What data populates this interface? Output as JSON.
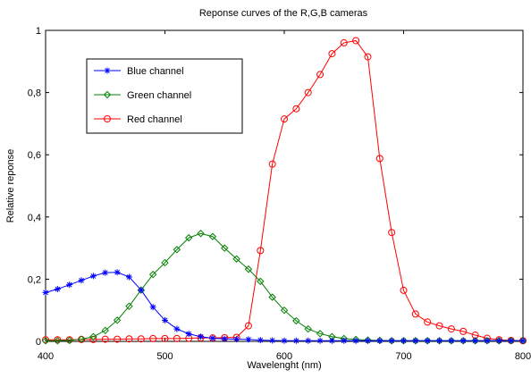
{
  "chart_data": {
    "type": "line",
    "title": "Reponse curves of the R,G,B cameras",
    "xlabel": "Wavelenght (nm)",
    "ylabel": "Relative reponse",
    "xlim": [
      400,
      800
    ],
    "ylim": [
      0,
      1
    ],
    "xticks": [
      400,
      500,
      600,
      700,
      800
    ],
    "xtick_labels": [
      "400",
      "500",
      "600",
      "700",
      "800"
    ],
    "yticks": [
      0,
      0.2,
      0.4,
      0.6,
      0.8,
      1
    ],
    "ytick_labels": [
      "0",
      "0,2",
      "0,4",
      "0,6",
      "0,8",
      "1"
    ],
    "grid": false,
    "legend_position": "top-left",
    "x": [
      400,
      410,
      420,
      430,
      440,
      450,
      460,
      470,
      480,
      490,
      500,
      510,
      520,
      530,
      540,
      550,
      560,
      570,
      580,
      590,
      600,
      610,
      620,
      630,
      640,
      650,
      660,
      670,
      680,
      690,
      700,
      710,
      720,
      730,
      740,
      750,
      760,
      770,
      780,
      790,
      800
    ],
    "series": [
      {
        "name": "Blue channel",
        "color": "#0000ff",
        "marker": "asterisk",
        "values": [
          0.157,
          0.168,
          0.182,
          0.196,
          0.21,
          0.221,
          0.222,
          0.207,
          0.165,
          0.11,
          0.068,
          0.04,
          0.024,
          0.015,
          0.01,
          0.008,
          0.007,
          0.006,
          0.004,
          0.003,
          0.002,
          0.002,
          0.002,
          0.002,
          0.002,
          0.002,
          0.002,
          0.002,
          0.002,
          0.002,
          0.002,
          0.002,
          0.002,
          0.002,
          0.002,
          0.002,
          0.002,
          0.002,
          0.002,
          0.002,
          0.002
        ]
      },
      {
        "name": "Green channel",
        "color": "#008000",
        "marker": "diamond",
        "values": [
          0.002,
          0.002,
          0.003,
          0.007,
          0.015,
          0.035,
          0.068,
          0.113,
          0.165,
          0.215,
          0.253,
          0.295,
          0.333,
          0.347,
          0.337,
          0.3,
          0.265,
          0.232,
          0.193,
          0.142,
          0.1,
          0.066,
          0.04,
          0.025,
          0.015,
          0.009,
          0.006,
          0.004,
          0.003,
          0.002,
          0.002,
          0.002,
          0.002,
          0.002,
          0.002,
          0.002,
          0.002,
          0.002,
          0.002,
          0.002,
          0.002
        ]
      },
      {
        "name": "Red channel",
        "color": "#ff0000",
        "marker": "circle",
        "values": [
          0.005,
          0.005,
          0.005,
          0.006,
          0.006,
          0.007,
          0.007,
          0.008,
          0.008,
          0.009,
          0.009,
          0.009,
          0.01,
          0.011,
          0.011,
          0.012,
          0.013,
          0.05,
          0.292,
          0.57,
          0.715,
          0.748,
          0.8,
          0.858,
          0.925,
          0.96,
          0.967,
          0.915,
          0.588,
          0.35,
          0.164,
          0.088,
          0.062,
          0.05,
          0.04,
          0.032,
          0.02,
          0.01,
          0.005,
          0.003,
          0.002
        ]
      }
    ]
  }
}
